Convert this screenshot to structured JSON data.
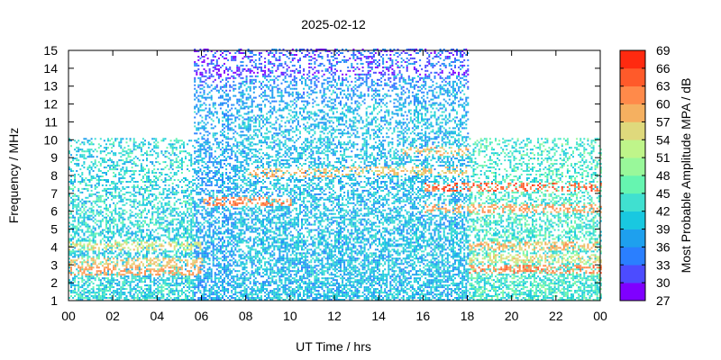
{
  "chart_data": {
    "type": "heatmap",
    "title": "2025-02-12",
    "xlabel": "UT Time / hrs",
    "ylabel": "Frequency / MHz",
    "xlim": [
      0,
      24
    ],
    "ylim": [
      1,
      15
    ],
    "x_tick_labels": [
      "00",
      "02",
      "04",
      "06",
      "08",
      "10",
      "12",
      "14",
      "16",
      "18",
      "20",
      "22",
      "00"
    ],
    "y_tick_labels": [
      "1",
      "2",
      "3",
      "4",
      "5",
      "6",
      "7",
      "8",
      "9",
      "10",
      "11",
      "12",
      "13",
      "14",
      "15"
    ],
    "grid": false,
    "colorbar": {
      "label": "Most Probable Amplitude MPA / dB",
      "tick_labels": [
        "27",
        "30",
        "33",
        "36",
        "39",
        "42",
        "45",
        "48",
        "51",
        "54",
        "57",
        "60",
        "63",
        "66",
        "69"
      ],
      "range": [
        27,
        69
      ],
      "colors": [
        "#7f00ff",
        "#4c4cff",
        "#2a7fff",
        "#1ea0ee",
        "#19c8e0",
        "#40e0d0",
        "#66f5b0",
        "#99f89a",
        "#bff58a",
        "#dfd97c",
        "#f5b060",
        "#ff8a4a",
        "#ff5a2a",
        "#ff2a10"
      ]
    },
    "observation_regions": [
      {
        "x_range": [
          0,
          5.6
        ],
        "f_range": [
          1,
          10
        ],
        "typical_mpa": 42
      },
      {
        "x_range": [
          5.6,
          7.5
        ],
        "f_range": [
          1,
          15
        ],
        "typical_mpa": 38
      },
      {
        "x_range": [
          7.5,
          18
        ],
        "f_range": [
          1,
          15
        ],
        "typical_mpa": 40
      },
      {
        "x_range": [
          18,
          24
        ],
        "f_range": [
          1,
          10
        ],
        "typical_mpa": 44
      }
    ],
    "bands": [
      {
        "x_range": [
          0,
          6
        ],
        "f": 2.6,
        "mpa": 60
      },
      {
        "x_range": [
          0,
          6
        ],
        "f": 3.1,
        "mpa": 57
      },
      {
        "x_range": [
          0,
          6
        ],
        "f": 4.0,
        "mpa": 55
      },
      {
        "x_range": [
          6,
          10
        ],
        "f": 6.5,
        "mpa": 62
      },
      {
        "x_range": [
          8,
          12
        ],
        "f": 8.1,
        "mpa": 58
      },
      {
        "x_range": [
          12,
          18
        ],
        "f": 8.2,
        "mpa": 57
      },
      {
        "x_range": [
          15,
          18
        ],
        "f": 9.3,
        "mpa": 58
      },
      {
        "x_range": [
          16,
          24
        ],
        "f": 7.3,
        "mpa": 64
      },
      {
        "x_range": [
          16,
          24
        ],
        "f": 6.1,
        "mpa": 60
      },
      {
        "x_range": [
          18,
          24
        ],
        "f": 2.7,
        "mpa": 62
      },
      {
        "x_range": [
          18,
          24
        ],
        "f": 4.0,
        "mpa": 58
      },
      {
        "x_range": [
          18,
          24
        ],
        "f": 3.3,
        "mpa": 55
      },
      {
        "x_range": [
          5.6,
          18
        ],
        "f": 13.8,
        "mpa": 30
      },
      {
        "x_range": [
          5.6,
          18
        ],
        "f": 12.2,
        "mpa": 36
      }
    ]
  }
}
